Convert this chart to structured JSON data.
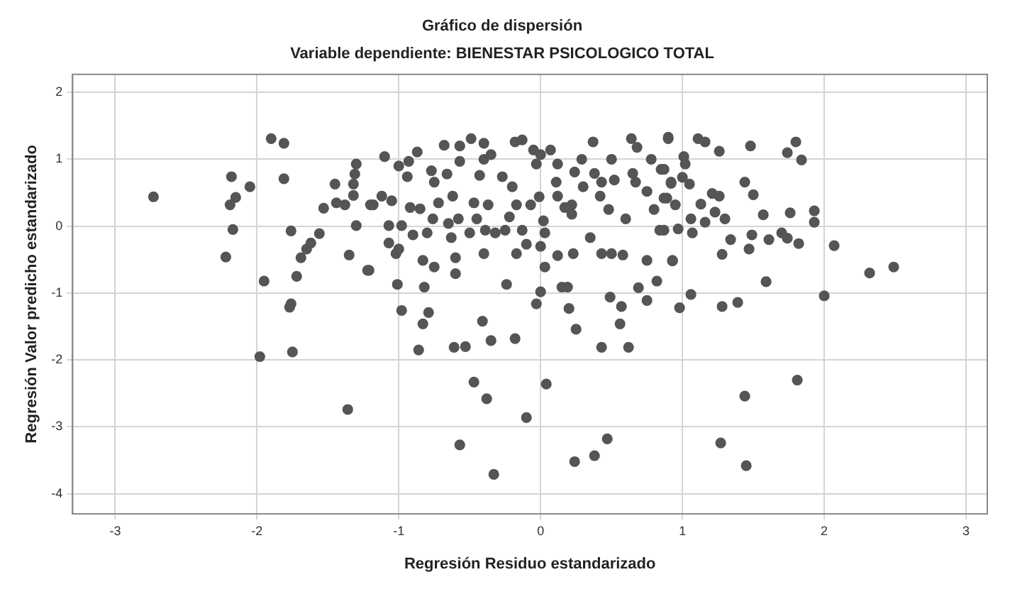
{
  "chart_data": {
    "type": "scatter",
    "title": "Gráfico de dispersión",
    "subtitle": "Variable dependiente: BIENESTAR PSICOLOGICO TOTAL",
    "xlabel": "Regresión Residuo estandarizado",
    "ylabel": "Regresión Valor predicho estandarizado",
    "xlim": [
      -3.3,
      3.15
    ],
    "ylim": [
      -4.3,
      2.27
    ],
    "xticks": [
      -3,
      -2,
      -1,
      0,
      1,
      2,
      3
    ],
    "yticks": [
      -4,
      -3,
      -2,
      -1,
      0,
      1,
      2
    ],
    "grid": true,
    "marker": "circle",
    "series": [
      {
        "color": "#555555",
        "x": [
          -2.73,
          -1.9,
          -1.81,
          -2.18,
          -2.05,
          -2.15,
          -2.19,
          -2.17,
          -2.22,
          -1.81,
          -1.76,
          -1.95,
          -1.98,
          -1.75,
          -1.77,
          -1.76,
          -1.72,
          -1.69,
          -1.65,
          -1.62,
          -1.56,
          -1.53,
          -1.45,
          -1.44,
          -1.38,
          -1.35,
          -1.36,
          -1.32,
          -1.32,
          -1.31,
          -1.3,
          -1.3,
          -1.22,
          -1.2,
          -1.21,
          -1.1,
          -1.0,
          -0.93,
          -0.94,
          -0.87,
          -1.12,
          -1.05,
          -1.18,
          -0.92,
          -0.85,
          -1.07,
          -0.98,
          -0.9,
          -0.8,
          -1.07,
          -1.02,
          -1.0,
          -1.01,
          -0.98,
          -0.83,
          -0.75,
          -0.82,
          -0.79,
          -0.83,
          -0.86,
          -0.76,
          -0.77,
          -0.75,
          -0.68,
          -0.66,
          -0.57,
          -0.49,
          -0.4,
          -0.57,
          -0.72,
          -0.62,
          -0.65,
          -0.63,
          -0.58,
          -0.6,
          -0.6,
          -0.5,
          -0.47,
          -0.45,
          -0.43,
          -0.4,
          -0.35,
          -0.39,
          -0.4,
          -0.37,
          -0.32,
          -0.27,
          -0.25,
          -0.24,
          -0.2,
          -0.22,
          -0.17,
          -0.18,
          -0.13,
          -0.13,
          -0.17,
          -0.1,
          -0.07,
          -0.05,
          0.0,
          -0.03,
          0.07,
          -0.01,
          0.02,
          0.03,
          0.0,
          0.03,
          0.0,
          -0.03,
          0.11,
          0.12,
          0.12,
          0.12,
          0.17,
          0.22,
          0.22,
          0.15,
          0.19,
          0.2,
          0.25,
          0.23,
          0.24,
          0.29,
          0.3,
          0.37,
          0.38,
          0.35,
          0.42,
          0.43,
          0.43,
          0.5,
          0.48,
          0.52,
          0.5,
          0.58,
          0.6,
          0.49,
          0.57,
          0.56,
          0.43,
          0.62,
          0.64,
          0.65,
          0.67,
          0.68,
          0.75,
          0.75,
          0.69,
          0.75,
          0.78,
          0.8,
          0.82,
          0.85,
          0.87,
          0.84,
          0.92,
          0.9,
          0.93,
          -0.47,
          -0.38,
          -0.57,
          -0.33,
          -0.1,
          0.04,
          0.24,
          0.38,
          0.47,
          -0.61,
          -0.53,
          -0.41,
          -0.35,
          -0.18,
          0.9,
          1.11,
          1.16,
          1.26,
          1.48,
          1.8,
          1.74,
          1.84,
          0.87,
          1.01,
          1.02,
          0.92,
          1.0,
          1.05,
          0.89,
          0.95,
          1.13,
          1.21,
          1.26,
          1.44,
          1.5,
          1.16,
          1.23,
          1.3,
          1.06,
          0.87,
          0.97,
          1.07,
          1.34,
          1.49,
          1.47,
          1.28,
          1.57,
          1.61,
          1.7,
          1.74,
          1.76,
          1.82,
          1.93,
          1.93,
          2.07,
          2.32,
          2.49,
          0.93,
          1.59,
          1.06,
          0.98,
          1.28,
          1.39,
          2.0,
          1.81,
          1.44,
          1.27,
          1.45
        ],
        "values": [
          0.44,
          1.31,
          1.24,
          0.74,
          0.59,
          0.43,
          0.32,
          -0.05,
          -0.46,
          0.71,
          -0.07,
          -0.82,
          -1.95,
          -1.88,
          -1.21,
          -1.16,
          -0.75,
          -0.47,
          -0.34,
          -0.25,
          -0.11,
          0.27,
          0.63,
          0.35,
          0.32,
          -0.43,
          -2.74,
          0.46,
          0.63,
          0.78,
          0.93,
          0.01,
          -0.66,
          0.32,
          -0.66,
          1.04,
          0.9,
          0.97,
          0.74,
          1.11,
          0.45,
          0.38,
          0.32,
          0.28,
          0.26,
          0.01,
          0.01,
          -0.13,
          -0.1,
          -0.25,
          -0.41,
          -0.34,
          -0.87,
          -1.26,
          -0.51,
          -0.61,
          -0.91,
          -1.29,
          -1.46,
          -1.85,
          0.11,
          0.83,
          0.66,
          1.21,
          0.78,
          1.2,
          1.31,
          1.24,
          0.97,
          0.35,
          0.45,
          0.04,
          -0.17,
          0.11,
          -0.47,
          -0.71,
          -0.1,
          0.35,
          0.11,
          0.76,
          1.0,
          1.07,
          -0.06,
          -0.41,
          0.32,
          -0.1,
          0.74,
          -0.06,
          -0.87,
          0.59,
          0.14,
          0.32,
          1.26,
          1.29,
          -0.06,
          -0.41,
          -0.27,
          0.32,
          1.14,
          1.07,
          0.93,
          1.14,
          0.44,
          0.08,
          -0.1,
          -0.3,
          -0.61,
          -0.98,
          -1.16,
          0.66,
          0.93,
          0.45,
          -0.44,
          0.28,
          0.32,
          0.18,
          -0.91,
          -0.91,
          -1.23,
          -1.54,
          -0.41,
          0.81,
          1.0,
          0.59,
          1.26,
          0.79,
          -0.17,
          0.45,
          0.66,
          -0.41,
          1.0,
          0.25,
          0.69,
          -0.41,
          -0.43,
          0.11,
          -1.06,
          -1.2,
          -1.46,
          -1.81,
          -1.81,
          1.31,
          0.79,
          0.66,
          1.18,
          0.52,
          -0.51,
          -0.92,
          -1.11,
          1.0,
          0.25,
          -0.82,
          0.85,
          0.42,
          -0.06,
          0.66,
          1.31,
          -0.51,
          -2.33,
          -2.58,
          -3.27,
          -3.71,
          -2.86,
          -2.36,
          -3.52,
          -3.43,
          -3.18,
          -1.81,
          -1.8,
          -1.42,
          -1.71,
          -1.68,
          1.33,
          1.31,
          1.26,
          1.12,
          1.2,
          1.26,
          1.1,
          0.99,
          0.85,
          1.04,
          0.93,
          0.64,
          0.73,
          0.63,
          0.42,
          0.32,
          0.33,
          0.49,
          0.45,
          0.66,
          0.47,
          0.06,
          0.21,
          0.11,
          0.11,
          -0.06,
          -0.04,
          -0.1,
          -0.2,
          -0.13,
          -0.34,
          -0.42,
          0.17,
          -0.2,
          -0.1,
          -0.18,
          0.2,
          -0.26,
          0.23,
          0.06,
          -0.29,
          -0.7,
          -0.61,
          -0.52,
          -0.83,
          -1.02,
          -1.22,
          -1.2,
          -1.14,
          -1.04,
          -2.3,
          -2.54,
          -3.24,
          -3.58
        ]
      }
    ]
  }
}
